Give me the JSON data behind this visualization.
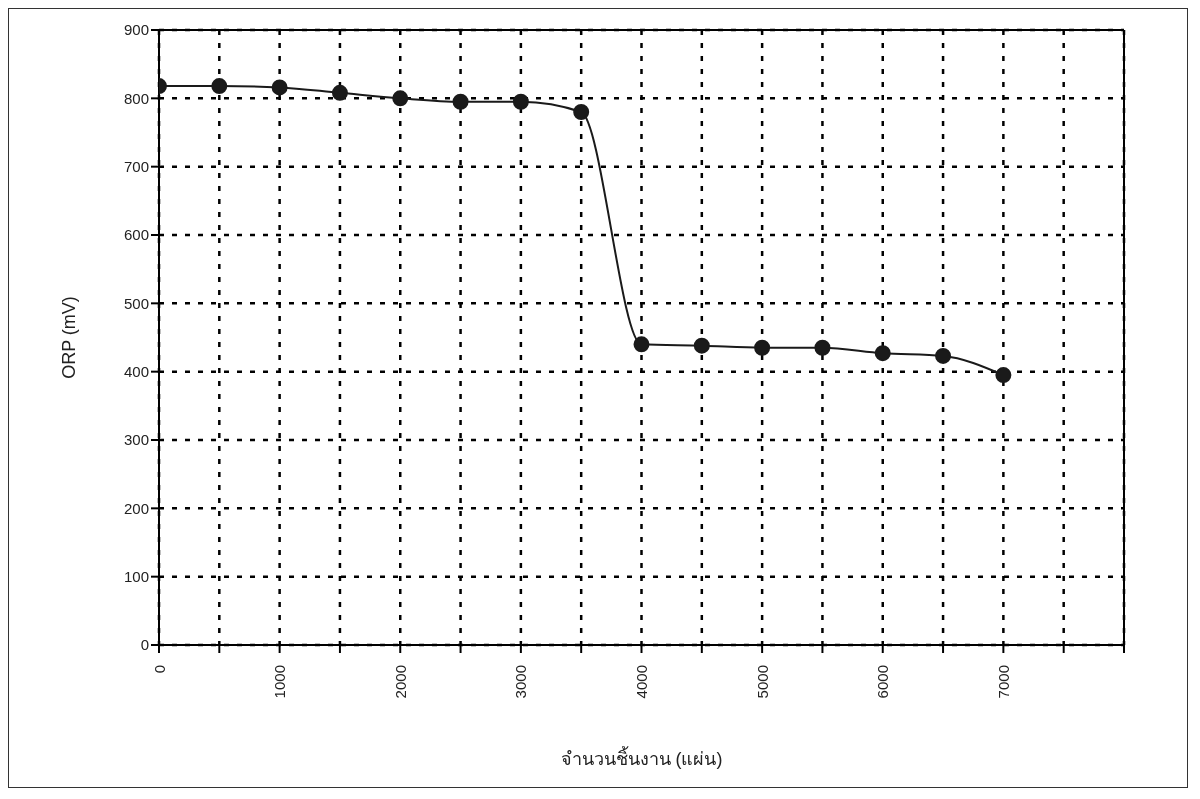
{
  "chart_data": {
    "type": "line",
    "xlabel": "จำนวนชิ้นงาน (แผ่น)",
    "ylabel": "ORP (mV)",
    "x": [
      0,
      500,
      1000,
      1500,
      2000,
      2500,
      3000,
      3500,
      4000,
      4500,
      5000,
      5500,
      6000,
      6500,
      7000
    ],
    "series": [
      {
        "color": "#1a1a1a",
        "values": [
          818,
          818,
          816,
          808,
          800,
          795,
          795,
          780,
          440,
          438,
          435,
          435,
          427,
          423,
          395
        ]
      }
    ],
    "xlim": [
      0,
      8000
    ],
    "xticks": [
      0,
      {
        "value": 500,
        "label": null
      },
      1000,
      {
        "value": 1500,
        "label": null
      },
      2000,
      {
        "value": 2500,
        "label": null
      },
      3000,
      {
        "value": 3500,
        "label": null
      },
      4000,
      {
        "value": 4500,
        "label": null
      },
      5000,
      {
        "value": 5500,
        "label": null
      },
      6000,
      {
        "value": 6500,
        "label": null
      },
      7000,
      {
        "value": 7500,
        "label": null
      },
      {
        "value": 8000,
        "label": null
      }
    ],
    "ylim": [
      0,
      900
    ],
    "yticks": [
      0,
      100,
      200,
      300,
      400,
      500,
      600,
      700,
      800,
      900
    ],
    "grid": true,
    "marker": "circle",
    "line_style": "solid",
    "legend": false
  }
}
